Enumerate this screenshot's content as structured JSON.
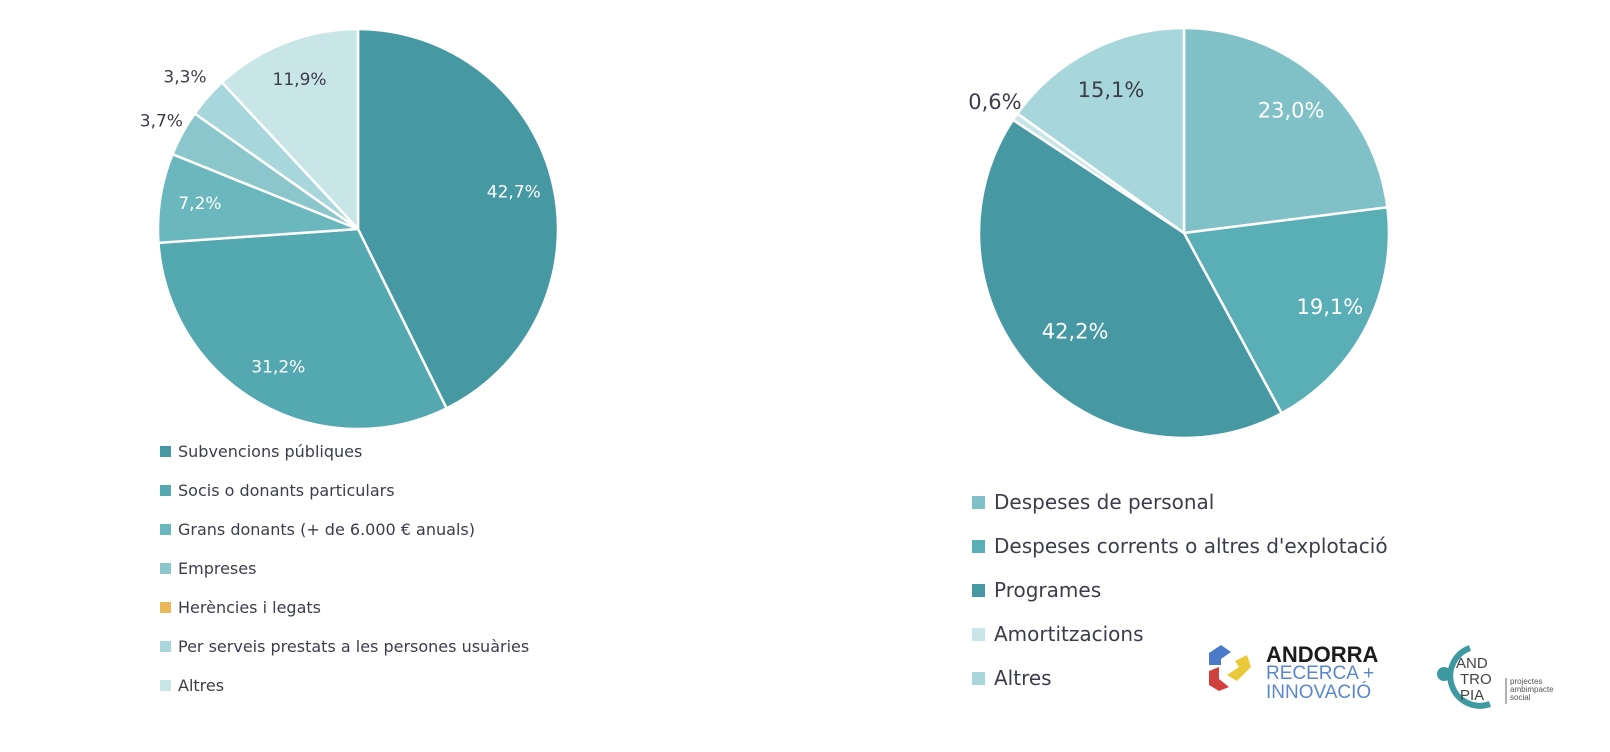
{
  "chart_data": [
    {
      "type": "pie",
      "title": "",
      "categories": [
        "Subvencions públiques",
        "Socis o donants particulars",
        "Grans donants (+ de 6.000 € anuals)",
        "Empreses",
        "Herències i legats",
        "Per serveis prestats a les persones usuàries",
        "Altres"
      ],
      "values": [
        42.7,
        31.2,
        7.2,
        3.7,
        0,
        3.3,
        11.9
      ],
      "labels": [
        "42,7%",
        "31,2%",
        "7,2%",
        "3,7%",
        "",
        "3,3%",
        "11,9%"
      ],
      "colors": [
        "#4699a3",
        "#54a8b0",
        "#6ab7bd",
        "#8ac6cc",
        "#e8b85a",
        "#a8d7db",
        "#c8e5e8"
      ],
      "legend_position": "bottom"
    },
    {
      "type": "pie",
      "title": "",
      "categories": [
        "Despeses de personal",
        "Despeses corrents o altres d'explotació",
        "Programes",
        "Amortitzacions",
        "Altres"
      ],
      "values": [
        23.0,
        19.1,
        42.2,
        0.6,
        15.1
      ],
      "labels": [
        "23,0%",
        "19,1%",
        "42,2%",
        "0,6%",
        "15,1%"
      ],
      "colors": [
        "#7fc1c7",
        "#5aafb6",
        "#4699a3",
        "#c8e5e8",
        "#a8d7db"
      ],
      "legend_position": "bottom"
    }
  ],
  "logos": {
    "andorra": {
      "line1": "ANDORRA",
      "line2": "RECERCA +",
      "line3": "INNOVACIÓ"
    },
    "antropia": {
      "name": "ANDTROPIA",
      "tagline": "projectes amb impacte social"
    }
  }
}
